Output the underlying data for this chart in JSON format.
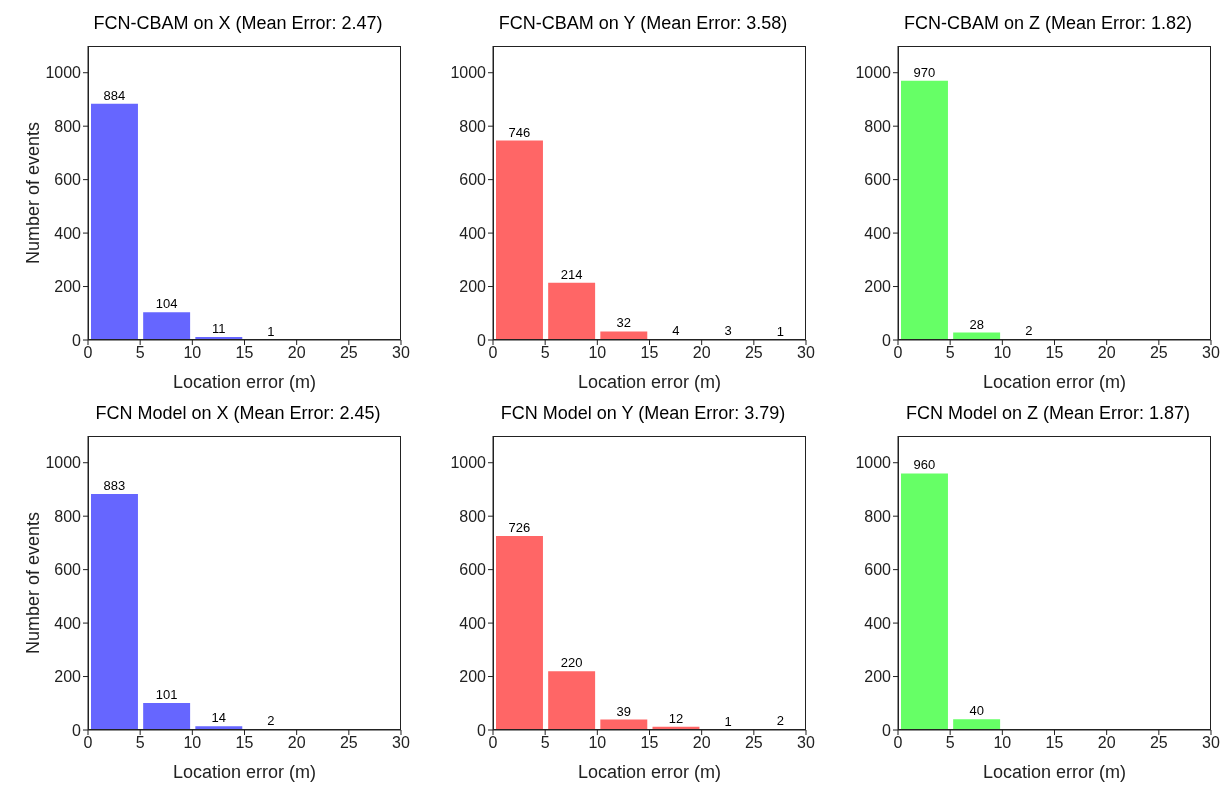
{
  "chart_data": [
    {
      "type": "histogram",
      "title": "FCN-CBAM on X (Mean Error: 2.47)",
      "xlabel": "Location error (m)",
      "ylabel": "Number of events",
      "bins": [
        0,
        5,
        10,
        15,
        20,
        25,
        30
      ],
      "values": [
        884,
        104,
        11,
        1,
        0,
        0
      ],
      "value_labels": [
        "884",
        "104",
        "11",
        "1",
        null,
        null
      ],
      "color": "#6666ff",
      "xlim": [
        0,
        30
      ],
      "xticks": [
        0,
        5,
        10,
        15,
        20,
        25,
        30
      ],
      "ylim": [
        0,
        1100
      ],
      "yticks": [
        0,
        200,
        400,
        600,
        800,
        1000
      ]
    },
    {
      "type": "histogram",
      "title": "FCN-CBAM on Y (Mean Error: 3.58)",
      "xlabel": "Location error (m)",
      "bins": [
        0,
        5,
        10,
        15,
        20,
        25,
        30
      ],
      "values": [
        746,
        214,
        32,
        4,
        3,
        1
      ],
      "value_labels": [
        "746",
        "214",
        "32",
        "4",
        "3",
        "1"
      ],
      "color": "#ff6666",
      "xlim": [
        0,
        30
      ],
      "xticks": [
        0,
        5,
        10,
        15,
        20,
        25,
        30
      ],
      "ylim": [
        0,
        1100
      ],
      "yticks": [
        0,
        200,
        400,
        600,
        800,
        1000
      ]
    },
    {
      "type": "histogram",
      "title": "FCN-CBAM on Z (Mean Error: 1.82)",
      "xlabel": "Location error (m)",
      "bins": [
        0,
        5,
        10,
        15,
        20,
        25,
        30
      ],
      "values": [
        970,
        28,
        2,
        0,
        0,
        0
      ],
      "value_labels": [
        "970",
        "28",
        "2",
        null,
        null,
        null
      ],
      "color": "#66ff66",
      "xlim": [
        0,
        30
      ],
      "xticks": [
        0,
        5,
        10,
        15,
        20,
        25,
        30
      ],
      "ylim": [
        0,
        1100
      ],
      "yticks": [
        0,
        200,
        400,
        600,
        800,
        1000
      ]
    },
    {
      "type": "histogram",
      "title": "FCN Model on X (Mean Error: 2.45)",
      "xlabel": "Location error (m)",
      "ylabel": "Number of events",
      "bins": [
        0,
        5,
        10,
        15,
        20,
        25,
        30
      ],
      "values": [
        883,
        101,
        14,
        2,
        0,
        0
      ],
      "value_labels": [
        "883",
        "101",
        "14",
        "2",
        null,
        null
      ],
      "color": "#6666ff",
      "xlim": [
        0,
        30
      ],
      "xticks": [
        0,
        5,
        10,
        15,
        20,
        25,
        30
      ],
      "ylim": [
        0,
        1100
      ],
      "yticks": [
        0,
        200,
        400,
        600,
        800,
        1000
      ]
    },
    {
      "type": "histogram",
      "title": "FCN Model on Y (Mean Error: 3.79)",
      "xlabel": "Location error (m)",
      "bins": [
        0,
        5,
        10,
        15,
        20,
        25,
        30
      ],
      "values": [
        726,
        220,
        39,
        12,
        1,
        2
      ],
      "value_labels": [
        "726",
        "220",
        "39",
        "12",
        "1",
        "2"
      ],
      "color": "#ff6666",
      "xlim": [
        0,
        30
      ],
      "xticks": [
        0,
        5,
        10,
        15,
        20,
        25,
        30
      ],
      "ylim": [
        0,
        1100
      ],
      "yticks": [
        0,
        200,
        400,
        600,
        800,
        1000
      ]
    },
    {
      "type": "histogram",
      "title": "FCN Model on Z (Mean Error: 1.87)",
      "xlabel": "Location error (m)",
      "bins": [
        0,
        5,
        10,
        15,
        20,
        25,
        30
      ],
      "values": [
        960,
        40,
        0,
        0,
        0,
        0
      ],
      "value_labels": [
        "960",
        "40",
        null,
        null,
        null,
        null
      ],
      "color": "#66ff66",
      "xlim": [
        0,
        30
      ],
      "xticks": [
        0,
        5,
        10,
        15,
        20,
        25,
        30
      ],
      "ylim": [
        0,
        1100
      ],
      "yticks": [
        0,
        200,
        400,
        600,
        800,
        1000
      ]
    }
  ]
}
